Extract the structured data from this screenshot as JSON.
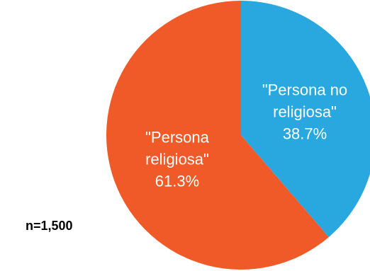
{
  "chart_data": {
    "type": "pie",
    "title": "",
    "slices": [
      {
        "label_lines": [
          "\"Persona no",
          "religiosa\""
        ],
        "value": 38.7,
        "value_label": "38.7%",
        "color": "#29a8e0"
      },
      {
        "label_lines": [
          "\"Persona",
          "religiosa\""
        ],
        "value": 61.3,
        "value_label": "61.3%",
        "color": "#f05a28"
      }
    ],
    "start": "12 o'clock, clockwise",
    "legend": "none",
    "label_color": "#ffffff"
  },
  "note": {
    "sample_size": "n=1,500"
  }
}
